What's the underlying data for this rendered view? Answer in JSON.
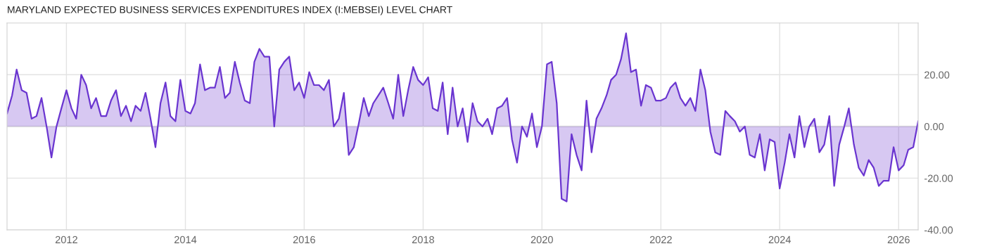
{
  "chart_data": {
    "type": "area",
    "title": "MARYLAND EXPECTED BUSINESS SERVICES EXPENDITURES INDEX (I:MEBSEI) LEVEL CHART",
    "x": [
      "2011-01",
      "2011-02",
      "2011-03",
      "2011-04",
      "2011-05",
      "2011-06",
      "2011-07",
      "2011-08",
      "2011-09",
      "2011-10",
      "2011-11",
      "2011-12",
      "2012-01",
      "2012-02",
      "2012-03",
      "2012-04",
      "2012-05",
      "2012-06",
      "2012-07",
      "2012-08",
      "2012-09",
      "2012-10",
      "2012-11",
      "2012-12",
      "2013-01",
      "2013-02",
      "2013-03",
      "2013-04",
      "2013-05",
      "2013-06",
      "2013-07",
      "2013-08",
      "2013-09",
      "2013-10",
      "2013-11",
      "2013-12",
      "2014-01",
      "2014-02",
      "2014-03",
      "2014-04",
      "2014-05",
      "2014-06",
      "2014-07",
      "2014-08",
      "2014-09",
      "2014-10",
      "2014-11",
      "2014-12",
      "2015-01",
      "2015-02",
      "2015-03",
      "2015-04",
      "2015-05",
      "2015-06",
      "2015-07",
      "2015-08",
      "2015-09",
      "2015-10",
      "2015-11",
      "2015-12",
      "2016-01",
      "2016-02",
      "2016-03",
      "2016-04",
      "2016-05",
      "2016-06",
      "2016-07",
      "2016-08",
      "2016-09",
      "2016-10",
      "2016-11",
      "2016-12",
      "2017-01",
      "2017-02",
      "2017-03",
      "2017-04",
      "2017-05",
      "2017-06",
      "2017-07",
      "2017-08",
      "2017-09",
      "2017-10",
      "2017-11",
      "2017-12",
      "2018-01",
      "2018-02",
      "2018-03",
      "2018-04",
      "2018-05",
      "2018-06",
      "2018-07",
      "2018-08",
      "2018-09",
      "2018-10",
      "2018-11",
      "2018-12",
      "2019-01",
      "2019-02",
      "2019-03",
      "2019-04",
      "2019-05",
      "2019-06",
      "2019-07",
      "2019-08",
      "2019-09",
      "2019-10",
      "2019-11",
      "2019-12",
      "2020-01",
      "2020-02",
      "2020-03",
      "2020-04",
      "2020-05",
      "2020-06",
      "2020-07",
      "2020-08",
      "2020-09",
      "2020-10",
      "2020-11",
      "2020-12",
      "2021-01",
      "2021-02",
      "2021-03",
      "2021-04",
      "2021-05",
      "2021-06",
      "2021-07",
      "2021-08",
      "2021-09",
      "2021-10",
      "2021-11",
      "2021-12",
      "2022-01",
      "2022-02",
      "2022-03",
      "2022-04",
      "2022-05",
      "2022-06",
      "2022-07",
      "2022-08",
      "2022-09",
      "2022-10",
      "2022-11",
      "2022-12",
      "2023-01",
      "2023-02",
      "2023-03",
      "2023-04",
      "2023-05",
      "2023-06",
      "2023-07",
      "2023-08",
      "2023-09",
      "2023-10",
      "2023-11",
      "2023-12",
      "2024-01",
      "2024-02",
      "2024-03",
      "2024-04",
      "2024-05",
      "2024-06",
      "2024-07",
      "2024-08",
      "2024-09",
      "2024-10",
      "2024-11",
      "2024-12",
      "2025-01",
      "2025-02",
      "2025-03",
      "2025-04",
      "2025-05",
      "2025-06",
      "2025-07",
      "2025-08",
      "2025-09",
      "2025-10",
      "2025-11",
      "2025-12",
      "2026-01",
      "2026-02",
      "2026-03",
      "2026-04",
      "2026-05"
    ],
    "series": [
      {
        "color": "#6a35d0",
        "values": [
          5,
          12,
          22,
          14,
          13,
          3,
          4,
          11,
          0,
          -12,
          0,
          7,
          14,
          7,
          3,
          20,
          16,
          7,
          11,
          4,
          4,
          10,
          14,
          4,
          8,
          2,
          8,
          6,
          13,
          3,
          -8,
          9,
          17,
          4,
          2,
          18,
          6,
          5,
          9,
          24,
          14,
          15,
          15,
          23,
          11,
          13,
          25,
          17,
          10,
          9,
          25,
          30,
          27,
          27,
          0,
          22,
          25,
          27,
          14,
          17,
          11,
          21,
          16,
          16,
          14,
          18,
          0,
          3,
          13,
          -11,
          -8,
          1,
          11,
          4,
          9,
          12,
          15,
          9,
          3,
          20,
          4,
          14,
          23,
          18,
          16,
          19,
          7,
          6,
          17,
          -3,
          15,
          0,
          7,
          -6,
          9,
          2,
          0,
          3,
          -3,
          7,
          8,
          11,
          -5,
          -14,
          0,
          -4,
          5,
          -8,
          0,
          24,
          25,
          9,
          -28,
          -29,
          -3,
          -11,
          -17,
          10,
          -10,
          3,
          7,
          12,
          18,
          20,
          26,
          36,
          21,
          22,
          8,
          16,
          15,
          10,
          10,
          11,
          15,
          17,
          11,
          8,
          11,
          6,
          22,
          14,
          -2,
          -10,
          -11,
          6,
          4,
          2,
          -2,
          0,
          -11,
          -12,
          -3,
          -17,
          -5,
          -6,
          -24,
          -14,
          -3,
          -12,
          4,
          -8,
          0,
          3,
          -10,
          -7,
          4,
          -23,
          -7,
          0,
          7,
          -7,
          -16,
          -19,
          -13,
          -16,
          -23,
          -21,
          -21,
          -8,
          -17,
          -15,
          -9,
          -8,
          2
        ]
      }
    ],
    "xlim": [
      "2011-01",
      "2026-05"
    ],
    "xticks": [
      "2012",
      "2014",
      "2016",
      "2018",
      "2020",
      "2022",
      "2024",
      "2026"
    ],
    "ylim": [
      -40,
      40
    ],
    "yticks": [
      {
        "value": 20,
        "label": "20.00"
      },
      {
        "value": 0,
        "label": "0.00"
      },
      {
        "value": -20,
        "label": "-20.00"
      },
      {
        "value": -40,
        "label": "-40.00"
      }
    ],
    "grid": true
  }
}
